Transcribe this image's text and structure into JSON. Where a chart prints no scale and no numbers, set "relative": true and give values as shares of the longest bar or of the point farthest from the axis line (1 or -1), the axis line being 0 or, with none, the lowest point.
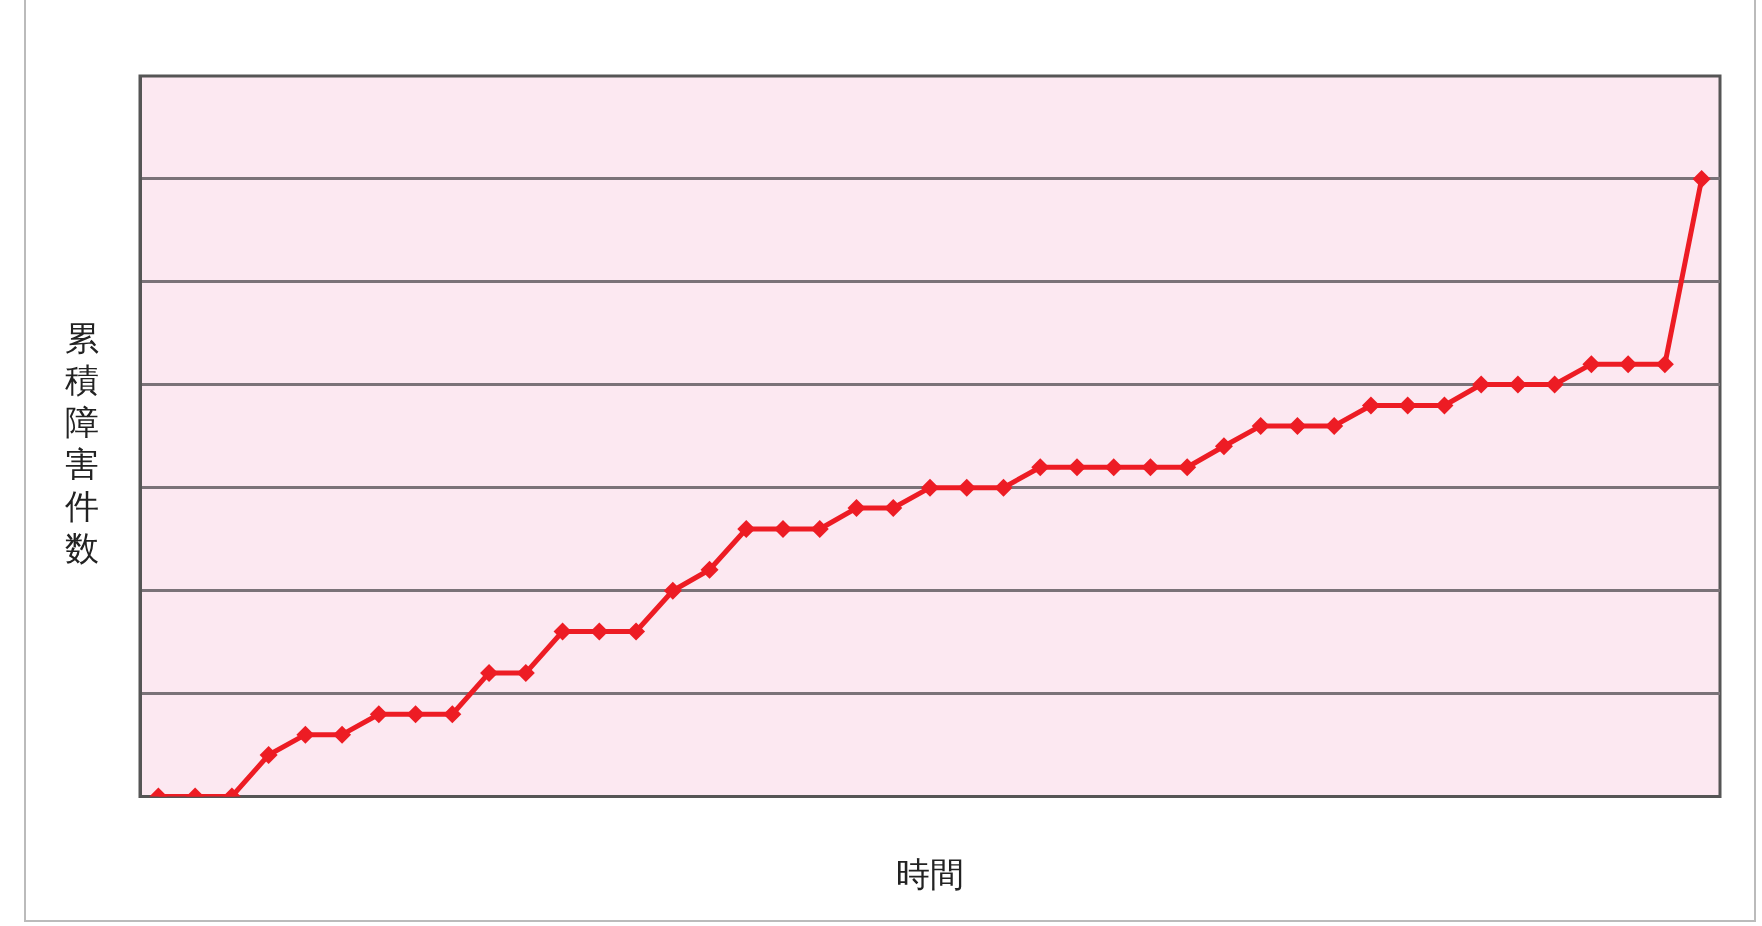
{
  "chart_data": {
    "type": "line",
    "xlabel": "時間",
    "ylabel": "累積障害件数",
    "relative": true,
    "grid": "y",
    "marker": "diamond",
    "line_style": "solid",
    "categories": [
      null,
      null,
      null,
      null,
      null,
      null,
      null,
      null,
      null,
      null,
      null,
      null,
      null,
      null,
      null,
      null,
      null,
      null,
      null,
      null,
      null,
      null,
      null,
      null,
      null,
      null,
      null,
      null,
      null,
      null,
      null,
      null,
      null,
      null,
      null,
      null,
      null,
      null,
      null,
      null,
      null,
      null,
      null
    ],
    "series": [
      {
        "color": "#ed1c24",
        "values": [
          0,
          0,
          0,
          0.067,
          0.1,
          0.1,
          0.133,
          0.133,
          0.133,
          0.2,
          0.2,
          0.267,
          0.267,
          0.267,
          0.333,
          0.367,
          0.433,
          0.433,
          0.433,
          0.467,
          0.467,
          0.5,
          0.5,
          0.5,
          0.533,
          0.533,
          0.533,
          0.533,
          0.533,
          0.567,
          0.6,
          0.6,
          0.6,
          0.633,
          0.633,
          0.633,
          0.667,
          0.667,
          0.667,
          0.7,
          0.7,
          0.7,
          1
        ]
      }
    ]
  }
}
